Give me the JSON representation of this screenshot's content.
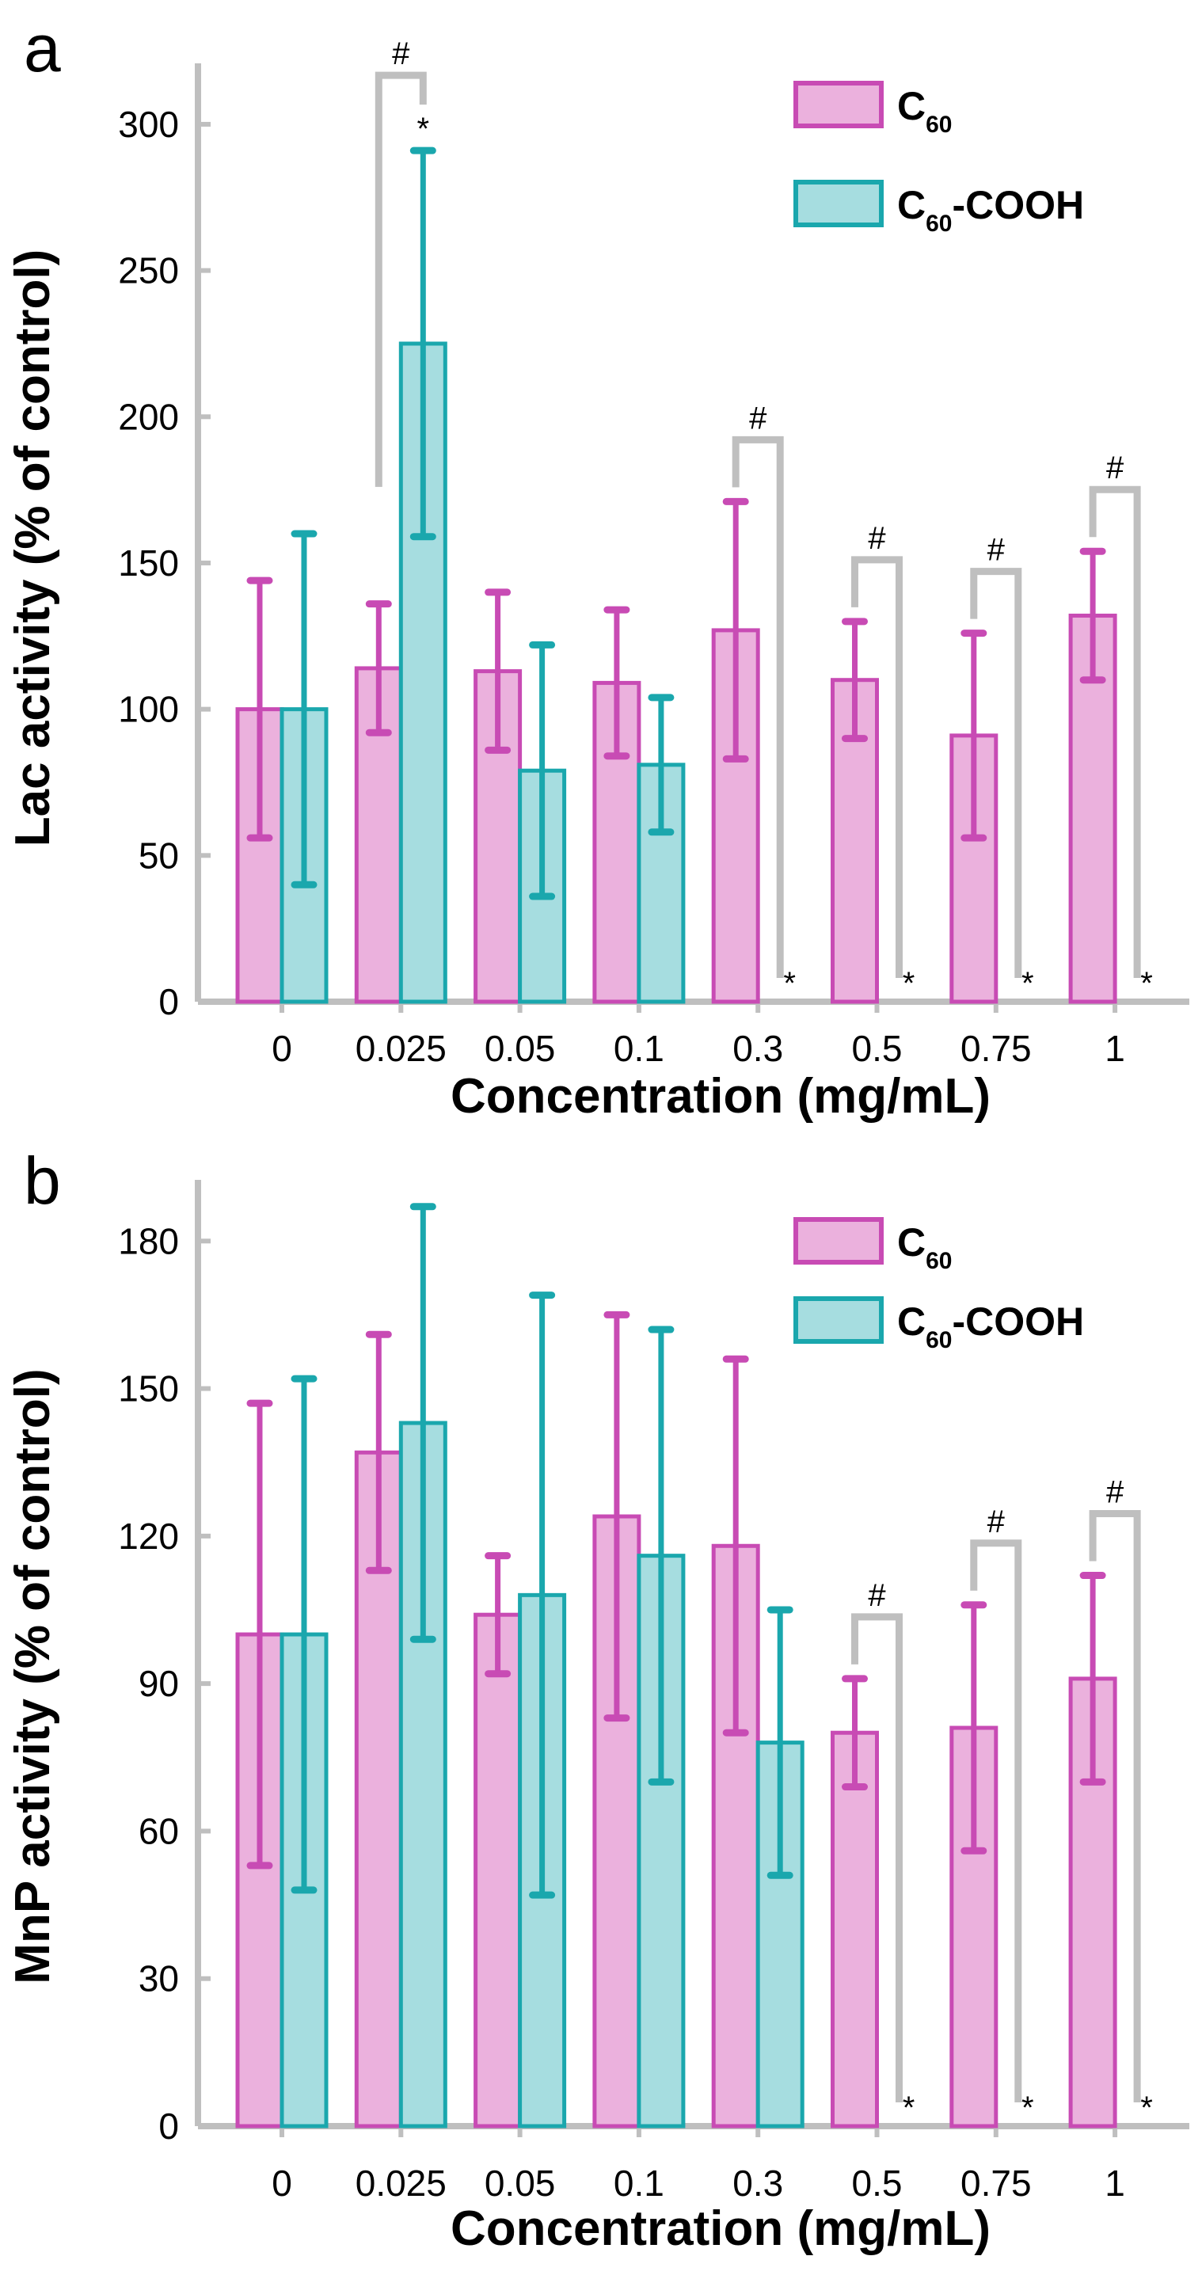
{
  "colors": {
    "c60_fill": "#ebb1dd",
    "c60_edge": "#c84bb4",
    "cooh_fill": "#a6dde0",
    "cooh_edge": "#1aa7ad",
    "axis": "#bfbfbf",
    "bracket": "#bfbfbf"
  },
  "legend": {
    "c60": {
      "main": "C",
      "sub": "60",
      "rest": ""
    },
    "cooh": {
      "main": "C",
      "sub": "60",
      "rest": "-COOH"
    }
  },
  "marks": {
    "significance_star": "*",
    "significance_hash": "#"
  },
  "chart_data": [
    {
      "panel_label": "a",
      "type": "bar",
      "title": "",
      "xlabel": "Concentration (mg/mL)",
      "ylabel": "Lac activity (% of control)",
      "ylim": [
        0,
        310
      ],
      "yticks": [
        0,
        50,
        100,
        150,
        200,
        250,
        300
      ],
      "categories": [
        "0",
        "0.025",
        "0.05",
        "0.1",
        "0.3",
        "0.5",
        "0.75",
        "1"
      ],
      "series": [
        {
          "name": "C60",
          "values": [
            100,
            114,
            113,
            109,
            127,
            110,
            91,
            132
          ],
          "errors": [
            44,
            22,
            27,
            25,
            44,
            20,
            35,
            22
          ]
        },
        {
          "name": "C60-COOH",
          "values": [
            100,
            225,
            79,
            81,
            0,
            0,
            0,
            0
          ],
          "errors": [
            60,
            66,
            43,
            23,
            0,
            0,
            0,
            0
          ]
        }
      ],
      "stars": [
        1,
        4,
        5,
        6,
        7
      ],
      "hashes": [
        1,
        4,
        5,
        6,
        7
      ],
      "legend_position": "top-right"
    },
    {
      "panel_label": "b",
      "type": "bar",
      "title": "",
      "xlabel": "Concentration (mg/mL)",
      "ylabel": "MnP activity (% of control)",
      "ylim": [
        0,
        186
      ],
      "yticks": [
        0,
        30,
        60,
        90,
        120,
        150,
        180
      ],
      "categories": [
        "0",
        "0.025",
        "0.05",
        "0.1",
        "0.3",
        "0.5",
        "0.75",
        "1"
      ],
      "series": [
        {
          "name": "C60",
          "values": [
            100,
            137,
            104,
            124,
            118,
            80,
            81,
            91
          ],
          "errors": [
            47,
            24,
            12,
            41,
            38,
            11,
            25,
            21
          ]
        },
        {
          "name": "C60-COOH",
          "values": [
            100,
            143,
            108,
            116,
            78,
            0,
            0,
            0
          ],
          "errors": [
            52,
            44,
            61,
            46,
            27,
            0,
            0,
            0
          ]
        }
      ],
      "stars": [
        5,
        6,
        7
      ],
      "hashes": [
        5,
        6,
        7
      ],
      "legend_position": "top-right"
    }
  ]
}
